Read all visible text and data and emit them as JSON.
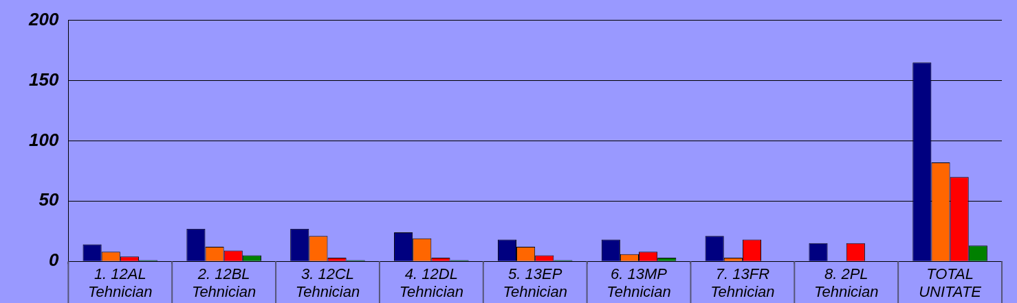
{
  "chart_data": {
    "type": "bar",
    "categories": [
      "1. 12AL Tehnician",
      "2. 12BL Tehnician",
      "3. 12CL Tehnician",
      "4. 12DL Tehnician",
      "5. 13EP Tehnician",
      "6. 13MP Tehnician",
      "7. 13FR Tehnician",
      "8. 2PL Tehnician",
      "TOTAL UNITATE"
    ],
    "series": [
      {
        "color": "#000080",
        "values": [
          14,
          27,
          27,
          24,
          18,
          18,
          21,
          15,
          165
        ]
      },
      {
        "color": "#ff6600",
        "values": [
          8,
          12,
          21,
          19,
          12,
          6,
          3,
          null,
          82
        ]
      },
      {
        "color": "#ff0000",
        "values": [
          4,
          9,
          3,
          3,
          5,
          8,
          18,
          15,
          70
        ]
      },
      {
        "color": "#008000",
        "values": [
          1,
          5,
          1,
          1,
          1,
          3,
          null,
          null,
          13
        ]
      }
    ],
    "ylim": [
      0,
      200
    ],
    "yticks": [
      0,
      50,
      100,
      150,
      200
    ],
    "grid": "y",
    "legend": false
  }
}
